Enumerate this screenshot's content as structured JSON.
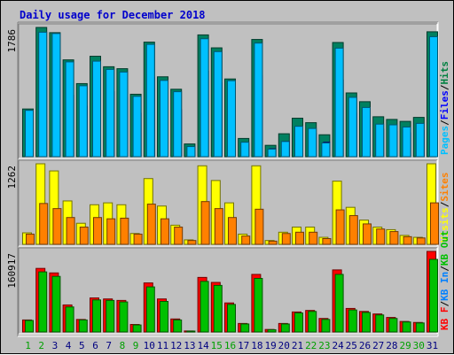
{
  "chart_data": {
    "type": "bar",
    "title": "Daily usage for December 2018",
    "days": [
      1,
      2,
      3,
      4,
      5,
      6,
      7,
      8,
      9,
      10,
      11,
      12,
      13,
      14,
      15,
      16,
      17,
      18,
      19,
      20,
      21,
      22,
      23,
      24,
      25,
      26,
      27,
      28,
      29,
      30,
      31
    ],
    "weekend_days": [
      1,
      2,
      8,
      9,
      15,
      16,
      22,
      23,
      29,
      30
    ],
    "panels": [
      {
        "max_label": "1786",
        "ymax": 1786,
        "legend": [
          {
            "text": "Pages",
            "color": "#00c0ff"
          },
          {
            "text": "Files",
            "color": "#0000ff"
          },
          {
            "text": "Hits",
            "color": "#008040"
          }
        ],
        "series": [
          {
            "name": "Hits",
            "color": "#008060",
            "values": [
              659,
              1786,
              1714,
              1338,
              1010,
              1388,
              1243,
              1216,
              863,
              1583,
              1104,
              932,
              176,
              1683,
              1504,
              1074,
              252,
              1620,
              157,
              317,
              532,
              470,
              303,
              1578,
              881,
              760,
              552,
              515,
              488,
              543,
              1726
            ]
          },
          {
            "name": "Files",
            "color": "#0000ff",
            "values": [
              500,
              1050,
              1200,
              850,
              700,
              1000,
              900,
              820,
              600,
              1100,
              800,
              650,
              120,
              1180,
              1020,
              800,
              180,
              1120,
              110,
              210,
              350,
              320,
              200,
              1060,
              600,
              520,
              380,
              350,
              330,
              360,
              1180
            ]
          },
          {
            "name": "Pages",
            "color": "#00c0ff",
            "values": [
              640,
              1720,
              1702,
              1310,
              980,
              1320,
              1206,
              1170,
              834,
              1552,
              1054,
              898,
              140,
              1630,
              1452,
              1050,
              200,
              1570,
              105,
              210,
              420,
              390,
              190,
              1500,
              820,
              680,
              450,
              440,
              410,
              460,
              1658
            ]
          }
        ]
      },
      {
        "max_label": "1262",
        "ymax": 1262,
        "legend": [
          {
            "text": "Visits",
            "color": "#ffff00"
          },
          {
            "text": "Sites",
            "color": "#ff8000"
          }
        ],
        "series": [
          {
            "name": "Visits",
            "color": "#ffff00",
            "values": [
              180,
              1262,
              1150,
              680,
              330,
              620,
              650,
              620,
              170,
              1030,
              600,
              300,
              70,
              1230,
              1000,
              650,
              160,
              1230,
              60,
              190,
              270,
              270,
              110,
              990,
              580,
              380,
              270,
              230,
              140,
              110,
              1262
            ]
          },
          {
            "name": "Sites",
            "color": "#ff8000",
            "values": [
              160,
              640,
              560,
              420,
              270,
              420,
              400,
              410,
              160,
              630,
              400,
              270,
              60,
              670,
              560,
              420,
              130,
              550,
              50,
              170,
              190,
              190,
              90,
              540,
              450,
              320,
              240,
              200,
              120,
              100,
              650
            ]
          }
        ]
      },
      {
        "max_label": "160917",
        "ymax": 160917,
        "legend": [
          {
            "text": "KB F",
            "color": "#ff0000"
          },
          {
            "text": "KB In",
            "color": "#0080ff"
          },
          {
            "text": "KB Out",
            "color": "#00c000"
          }
        ],
        "series": [
          {
            "name": "KB F",
            "color": "#ff0000",
            "values": [
              24000,
              127000,
              118000,
              54000,
              25000,
              68000,
              66000,
              63000,
              15000,
              98000,
              66000,
              26000,
              2000,
              109000,
              99000,
              58000,
              17000,
              115000,
              5000,
              17000,
              40000,
              43000,
              27000,
              124000,
              47000,
              41000,
              36000,
              29000,
              21000,
              19000,
              160917
            ]
          },
          {
            "name": "KB In",
            "color": "#0080ff",
            "values": [
              400,
              900,
              900,
              600,
              400,
              700,
              700,
              600,
              200,
              900,
              600,
              300,
              50,
              900,
              800,
              600,
              200,
              900,
              100,
              200,
              400,
              400,
              300,
              900,
              500,
              400,
              400,
              300,
              300,
              300,
              1200
            ]
          },
          {
            "name": "KB Out",
            "color": "#00c000",
            "values": [
              23000,
              120000,
              111000,
              50000,
              24000,
              64000,
              63000,
              60000,
              14000,
              90000,
              61000,
              24000,
              1800,
              101000,
              93000,
              55000,
              16000,
              107000,
              4500,
              16000,
              38000,
              41000,
              25000,
              115000,
              44000,
              39000,
              34000,
              27000,
              20000,
              18000,
              145000
            ]
          }
        ]
      }
    ]
  }
}
